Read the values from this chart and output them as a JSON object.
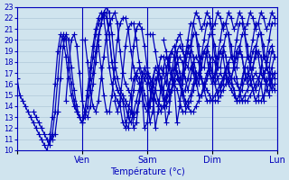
{
  "xlabel": "Température (°c)",
  "bg_color": "#d0e4ee",
  "grid_color": "#b0c8d8",
  "line_color": "#0000bb",
  "marker": "+",
  "markersize": 4,
  "linewidth": 0.9,
  "ylim": [
    10,
    23
  ],
  "xlim": [
    0,
    96
  ],
  "yticks": [
    10,
    11,
    12,
    13,
    14,
    15,
    16,
    17,
    18,
    19,
    20,
    21,
    22,
    23
  ],
  "day_positions": [
    0,
    24,
    48,
    72,
    96
  ],
  "day_labels": [
    "",
    "Ven",
    "Sam",
    "Dim",
    "Lun"
  ],
  "series": [
    {
      "start": 0,
      "values": [
        16.5,
        15.0,
        14.5,
        14.0,
        13.5,
        13.0,
        12.5,
        12.0,
        11.5,
        11.0,
        10.5,
        10.0,
        11.0,
        13.0,
        16.0,
        19.0,
        20.5,
        20.0,
        18.5,
        16.5,
        15.0,
        14.0,
        13.5,
        13.0,
        12.5,
        13.0,
        14.0,
        15.5,
        17.0,
        19.0,
        20.5,
        21.5,
        22.5,
        23.0,
        22.5,
        20.5,
        18.0,
        16.5,
        15.5,
        15.0,
        14.5,
        14.0,
        13.5,
        13.0,
        13.5,
        14.5,
        15.5,
        16.5,
        17.0,
        16.5,
        16.0,
        15.5,
        14.5,
        14.0,
        14.0,
        14.5,
        15.0,
        15.5,
        16.0,
        16.5,
        16.0,
        15.5,
        14.5,
        14.0,
        13.5,
        13.5,
        14.0,
        14.5,
        15.0,
        15.5,
        16.5,
        17.0,
        16.5,
        16.0,
        16.5,
        17.0,
        16.5,
        16.5,
        16.0,
        15.5,
        15.0,
        14.5,
        14.5,
        14.5,
        15.0,
        15.5,
        16.0,
        16.5,
        17.0,
        16.5,
        16.0,
        14.5,
        16.5,
        16.5,
        17.0,
        16.5
      ]
    },
    {
      "start": 6,
      "values": [
        13.5,
        13.0,
        12.5,
        12.0,
        11.5,
        11.0,
        10.5,
        11.5,
        13.5,
        16.5,
        19.5,
        20.5,
        20.0,
        18.0,
        16.0,
        14.5,
        13.5,
        13.0,
        12.5,
        13.5,
        15.0,
        16.5,
        18.5,
        20.5,
        21.5,
        22.0,
        22.5,
        22.0,
        20.5,
        18.0,
        16.5,
        15.5,
        15.0,
        14.5,
        14.0,
        13.0,
        12.5,
        13.5,
        14.5,
        15.5,
        16.5,
        17.0,
        16.5,
        16.0,
        15.5,
        14.5,
        14.0,
        13.5,
        14.0,
        15.0,
        16.0,
        16.5,
        16.0,
        15.5,
        14.5,
        13.5,
        13.5,
        14.0,
        14.5,
        15.5,
        16.5,
        16.5,
        16.5,
        16.0,
        15.5,
        15.0,
        14.5,
        14.5,
        14.5,
        15.0,
        15.5,
        16.0,
        16.5,
        16.5,
        16.5,
        16.0,
        15.5,
        14.5,
        14.5,
        14.5,
        15.0,
        15.5,
        16.0,
        16.5,
        17.0,
        16.5,
        16.0,
        15.0,
        16.5,
        17.0
      ]
    },
    {
      "start": 12,
      "values": [
        11.5,
        11.0,
        11.5,
        13.5,
        16.5,
        19.5,
        20.5,
        20.0,
        17.5,
        15.5,
        14.0,
        13.0,
        12.5,
        13.5,
        15.5,
        17.5,
        19.5,
        21.0,
        22.0,
        22.5,
        22.0,
        20.0,
        17.5,
        16.0,
        15.0,
        14.5,
        14.0,
        12.5,
        12.0,
        13.5,
        15.0,
        16.5,
        17.0,
        16.5,
        15.5,
        14.0,
        13.5,
        14.0,
        15.5,
        16.5,
        16.5,
        15.5,
        14.5,
        14.0,
        14.5,
        15.5,
        16.5,
        17.0,
        16.5,
        15.0,
        14.0,
        14.5,
        15.0,
        16.0,
        17.0,
        17.0,
        16.5,
        15.5,
        14.5,
        14.5,
        14.5,
        15.0,
        15.5,
        16.0,
        16.5,
        17.0,
        16.5,
        16.0,
        15.5,
        14.5,
        15.0,
        15.5,
        16.5,
        17.0,
        16.5,
        15.5,
        14.5,
        14.5,
        14.5,
        15.0,
        15.5,
        16.0,
        16.5,
        17.0
      ]
    },
    {
      "start": 18,
      "values": [
        14.5,
        17.5,
        20.0,
        20.5,
        19.5,
        17.0,
        14.5,
        13.5,
        13.0,
        14.0,
        16.0,
        18.0,
        20.0,
        21.5,
        22.5,
        22.5,
        20.5,
        18.0,
        16.5,
        15.5,
        15.0,
        14.5,
        12.5,
        12.0,
        13.5,
        15.5,
        17.0,
        17.5,
        16.5,
        15.0,
        14.0,
        14.5,
        16.0,
        17.5,
        17.5,
        16.5,
        15.0,
        14.5,
        15.5,
        17.0,
        17.5,
        17.0,
        16.0,
        15.0,
        15.5,
        16.5,
        17.5,
        17.5,
        16.5,
        15.0,
        15.0,
        16.0,
        17.0,
        17.5,
        17.0,
        16.0,
        15.0,
        15.5,
        16.5,
        17.5,
        17.5,
        16.5,
        15.5,
        14.5,
        15.0,
        16.5,
        17.5,
        17.5,
        16.5,
        15.5,
        14.5,
        15.0,
        16.0,
        17.0,
        17.5,
        17.0,
        16.0,
        15.5
      ]
    },
    {
      "start": 24,
      "values": [
        20.0,
        20.0,
        18.0,
        15.5,
        14.0,
        13.5,
        14.5,
        16.5,
        18.5,
        20.5,
        21.5,
        22.0,
        22.5,
        21.5,
        19.0,
        17.0,
        16.0,
        15.5,
        15.0,
        12.0,
        12.5,
        14.5,
        16.5,
        17.5,
        17.0,
        15.5,
        14.5,
        15.5,
        17.0,
        18.5,
        18.5,
        17.5,
        15.5,
        15.5,
        16.5,
        18.0,
        18.5,
        18.0,
        16.5,
        15.5,
        16.5,
        18.0,
        18.5,
        18.0,
        16.5,
        15.5,
        16.5,
        18.0,
        18.5,
        18.0,
        16.5,
        15.5,
        16.0,
        17.0,
        18.0,
        18.5,
        18.0,
        16.5,
        15.5,
        16.0,
        17.5,
        18.5,
        18.0,
        16.5,
        15.5,
        16.0,
        17.5,
        18.5,
        18.0,
        16.5,
        15.5,
        16.0
      ]
    },
    {
      "start": 30,
      "values": [
        19.5,
        17.5,
        15.0,
        13.5,
        13.5,
        15.0,
        17.5,
        20.0,
        21.5,
        22.0,
        22.0,
        21.0,
        19.0,
        17.5,
        16.5,
        16.0,
        15.5,
        12.0,
        12.5,
        14.5,
        16.5,
        17.5,
        17.0,
        15.5,
        15.5,
        17.0,
        18.5,
        19.0,
        18.5,
        17.0,
        16.0,
        17.0,
        18.5,
        19.0,
        18.5,
        17.0,
        16.0,
        17.0,
        18.5,
        19.0,
        18.5,
        17.0,
        16.0,
        17.0,
        18.5,
        19.0,
        18.5,
        17.0,
        16.0,
        16.5,
        17.5,
        18.5,
        19.0,
        18.5,
        17.0,
        16.0,
        16.5,
        17.5,
        18.5,
        19.0,
        18.5,
        17.0,
        16.0,
        16.5,
        17.5,
        18.5
      ]
    },
    {
      "start": 36,
      "values": [
        14.5,
        13.5,
        14.5,
        17.0,
        19.5,
        21.0,
        21.5,
        21.5,
        20.0,
        18.0,
        17.0,
        16.5,
        16.0,
        12.5,
        13.5,
        15.5,
        17.0,
        17.5,
        17.0,
        16.0,
        17.5,
        19.0,
        19.5,
        18.5,
        17.0,
        16.0,
        17.5,
        19.0,
        19.5,
        18.5,
        17.0,
        16.0,
        17.5,
        19.0,
        19.5,
        18.5,
        17.0,
        16.5,
        17.5,
        19.0,
        19.5,
        18.5,
        17.0,
        16.5,
        17.5,
        19.0,
        19.5,
        18.5,
        17.0,
        16.5,
        17.5,
        19.0,
        19.5,
        18.5,
        17.0,
        16.5,
        17.5,
        19.0,
        19.5,
        18.5
      ]
    },
    {
      "start": 42,
      "values": [
        16.5,
        19.5,
        21.0,
        21.5,
        21.0,
        19.5,
        17.5,
        16.5,
        16.0,
        12.0,
        13.5,
        15.5,
        17.5,
        18.5,
        18.0,
        17.0,
        18.5,
        20.0,
        20.5,
        19.5,
        18.0,
        17.5,
        19.0,
        20.5,
        20.5,
        19.5,
        17.5,
        17.5,
        19.0,
        20.5,
        20.5,
        19.5,
        17.5,
        17.5,
        19.0,
        20.5,
        20.5,
        19.5,
        17.5,
        17.5,
        19.0,
        20.5,
        20.5,
        19.5,
        17.5,
        17.5,
        19.0,
        20.5,
        20.5,
        19.5,
        17.5,
        17.5,
        19.0
      ]
    },
    {
      "start": 48,
      "values": [
        20.5,
        20.5,
        20.5,
        19.0,
        17.5,
        16.5,
        15.5,
        12.5,
        13.5,
        15.5,
        17.5,
        19.0,
        19.5,
        19.0,
        18.5,
        20.0,
        21.5,
        21.5,
        20.5,
        18.5,
        18.5,
        20.0,
        21.5,
        21.5,
        20.5,
        18.5,
        18.5,
        20.0,
        21.5,
        21.5,
        20.5,
        18.5,
        18.5,
        20.0,
        21.5,
        21.5,
        20.5,
        18.5,
        18.5,
        20.0,
        21.5,
        21.5,
        20.5,
        18.5,
        18.5,
        20.0,
        21.5,
        21.5
      ]
    },
    {
      "start": 54,
      "values": [
        20.0,
        19.0,
        17.5,
        16.5,
        16.0,
        12.5,
        14.0,
        16.5,
        18.5,
        19.5,
        19.5,
        21.5,
        22.5,
        22.0,
        21.0,
        21.5,
        22.5,
        22.0,
        21.0,
        21.5,
        22.5,
        22.0,
        21.0,
        21.5,
        22.5,
        22.0,
        21.0,
        21.5,
        22.5,
        22.0,
        21.0,
        21.5,
        22.5,
        22.0,
        21.0,
        21.5,
        22.5,
        22.0,
        21.0,
        21.5,
        22.5,
        22.0
      ]
    }
  ]
}
